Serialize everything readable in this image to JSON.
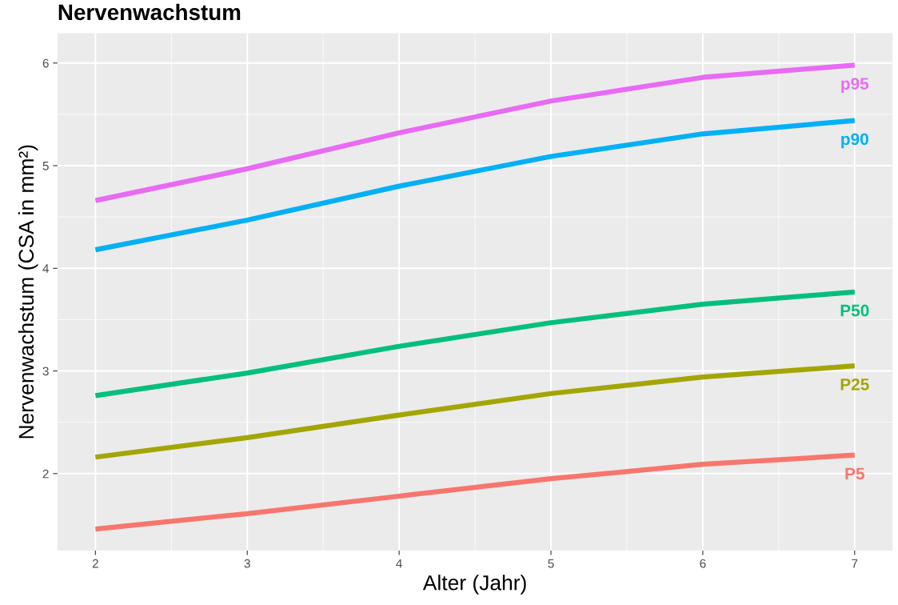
{
  "chart_data": {
    "type": "line",
    "title": "Nervenwachstum",
    "xlabel": "Alter (Jahr)",
    "ylabel": "Nervenwachstum (CSA in mm²)",
    "x": [
      2,
      3,
      4,
      5,
      6,
      7
    ],
    "series": [
      {
        "name": "p95",
        "color": "#e76bf3",
        "values": [
          4.66,
          4.97,
          5.32,
          5.63,
          5.86,
          5.98
        ]
      },
      {
        "name": "p90",
        "color": "#00b0f6",
        "values": [
          4.18,
          4.47,
          4.8,
          5.09,
          5.31,
          5.44
        ]
      },
      {
        "name": "P50",
        "color": "#00bf7d",
        "values": [
          2.76,
          2.98,
          3.24,
          3.47,
          3.65,
          3.77
        ]
      },
      {
        "name": "P25",
        "color": "#a3a500",
        "values": [
          2.16,
          2.35,
          2.57,
          2.78,
          2.94,
          3.05
        ]
      },
      {
        "name": "P5",
        "color": "#f8766d",
        "values": [
          1.46,
          1.61,
          1.78,
          1.95,
          2.09,
          2.18
        ]
      }
    ],
    "xlim": [
      1.75,
      7.25
    ],
    "ylim": [
      1.25,
      6.29
    ],
    "xticks": [
      2,
      3,
      4,
      5,
      6,
      7
    ],
    "yticks": [
      2,
      3,
      4,
      5,
      6
    ],
    "grid": true,
    "legend": false,
    "marker": "none",
    "line_style": "solid"
  }
}
